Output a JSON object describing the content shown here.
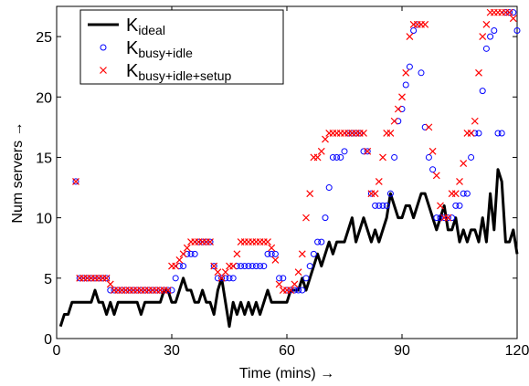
{
  "chart_data": {
    "type": "line",
    "xlabel": "Time (mins) →",
    "ylabel": "Num servers →",
    "xlim": [
      0,
      120
    ],
    "xticks": [
      0,
      30,
      60,
      90,
      120
    ],
    "ylim": [
      0,
      27.5
    ],
    "yticks": [
      0,
      5,
      10,
      15,
      20,
      25
    ],
    "legend": "upper left",
    "x": [
      1,
      2,
      3,
      4,
      5,
      6,
      7,
      8,
      9,
      10,
      11,
      12,
      13,
      14,
      15,
      16,
      17,
      18,
      19,
      20,
      21,
      22,
      23,
      24,
      25,
      26,
      27,
      28,
      29,
      30,
      31,
      32,
      33,
      34,
      35,
      36,
      37,
      38,
      39,
      40,
      41,
      42,
      43,
      44,
      45,
      46,
      47,
      48,
      49,
      50,
      51,
      52,
      53,
      54,
      55,
      56,
      57,
      58,
      59,
      60,
      61,
      62,
      63,
      64,
      65,
      66,
      67,
      68,
      69,
      70,
      71,
      72,
      73,
      74,
      75,
      76,
      77,
      78,
      79,
      80,
      81,
      82,
      83,
      84,
      85,
      86,
      87,
      88,
      89,
      90,
      91,
      92,
      93,
      94,
      95,
      96,
      97,
      98,
      99,
      100,
      101,
      102,
      103,
      104,
      105,
      106,
      107,
      108,
      109,
      110,
      111,
      112,
      113,
      114,
      115,
      116,
      117,
      118,
      119,
      120
    ],
    "series": [
      {
        "name": "K",
        "subscript": "ideal",
        "style": "line",
        "color": "#000000",
        "values": [
          1,
          2,
          2,
          3,
          3,
          3,
          3,
          3,
          3,
          4,
          3,
          3,
          2,
          3,
          2,
          3,
          3,
          3,
          3,
          3,
          3,
          2,
          3,
          3,
          3,
          3,
          3,
          4,
          4,
          3,
          3,
          4,
          5,
          4,
          4,
          3,
          3,
          4,
          3,
          3,
          2,
          4,
          5,
          3,
          1,
          3,
          2,
          3,
          2,
          3,
          2,
          3,
          2,
          3,
          4,
          3,
          3,
          3,
          3,
          3,
          4,
          4,
          4,
          5,
          4,
          5,
          6,
          7,
          6,
          7,
          8,
          7,
          8,
          8,
          8,
          9,
          10,
          8,
          9,
          10,
          9,
          8,
          9,
          8,
          9,
          10,
          12,
          11,
          10,
          10,
          11,
          11,
          10,
          11,
          12,
          12,
          11,
          10,
          9,
          10,
          11,
          9,
          9,
          10,
          8,
          9,
          8,
          9,
          9,
          8,
          10,
          8,
          12,
          9,
          14,
          13,
          8,
          8,
          9,
          7
        ]
      },
      {
        "name": "K",
        "subscript": "busy+idle",
        "style": "circle",
        "color": "#0000ff",
        "values": [
          null,
          null,
          null,
          null,
          13,
          5,
          5,
          5,
          5,
          5,
          5,
          5,
          5,
          4,
          4,
          4,
          4,
          4,
          4,
          4,
          4,
          4,
          4,
          4,
          4,
          4,
          4,
          4,
          4,
          4,
          5,
          6,
          6,
          7,
          7,
          7,
          8,
          8,
          8,
          8,
          6,
          5,
          5,
          5,
          5,
          5,
          6,
          6,
          6,
          6,
          6,
          6,
          6,
          6,
          7,
          7,
          7,
          5,
          5,
          4,
          4,
          4,
          4,
          4,
          5,
          6,
          7,
          8,
          8,
          10,
          12.5,
          15,
          15,
          15,
          15.5,
          17,
          17,
          17,
          17,
          15.5,
          15.5,
          12,
          11,
          11,
          11,
          11,
          12,
          15,
          18,
          19,
          21,
          22.5,
          25.5,
          26,
          22,
          17.5,
          15,
          14,
          10,
          10,
          10,
          10,
          10,
          11,
          11,
          12,
          12,
          15,
          17,
          17,
          20.5,
          24,
          25,
          25.5,
          17,
          17,
          27,
          27,
          27,
          25.5
        ]
      },
      {
        "name": "K",
        "subscript": "busy+idle+setup",
        "style": "cross",
        "color": "#ff0000",
        "values": [
          null,
          null,
          null,
          null,
          13,
          5,
          5,
          5,
          5,
          5,
          5,
          5,
          5,
          4.5,
          4,
          4,
          4,
          4,
          4,
          4,
          4,
          4,
          4,
          4,
          4,
          4,
          4,
          4,
          4,
          6,
          6,
          6.5,
          7,
          7.5,
          8,
          8,
          8,
          8,
          8,
          8,
          6,
          5.5,
          5,
          5.5,
          6,
          6,
          7,
          8,
          8,
          8,
          8,
          8,
          8,
          8,
          8,
          7.5,
          6.5,
          4.5,
          4,
          4,
          4,
          4.5,
          5.5,
          7,
          10,
          12,
          15,
          15,
          15.5,
          16.5,
          17,
          17,
          17,
          17,
          17,
          17,
          17,
          17,
          17,
          17,
          15.5,
          12,
          12,
          13,
          15,
          17,
          17,
          18,
          19,
          20,
          22,
          25,
          26,
          26,
          26,
          26,
          17.5,
          15.5,
          13.5,
          11,
          10,
          10,
          12,
          12,
          13,
          14.5,
          17,
          17,
          18,
          22,
          25,
          26,
          27,
          27,
          27,
          27,
          27,
          27,
          26.5,
          null
        ]
      }
    ]
  }
}
